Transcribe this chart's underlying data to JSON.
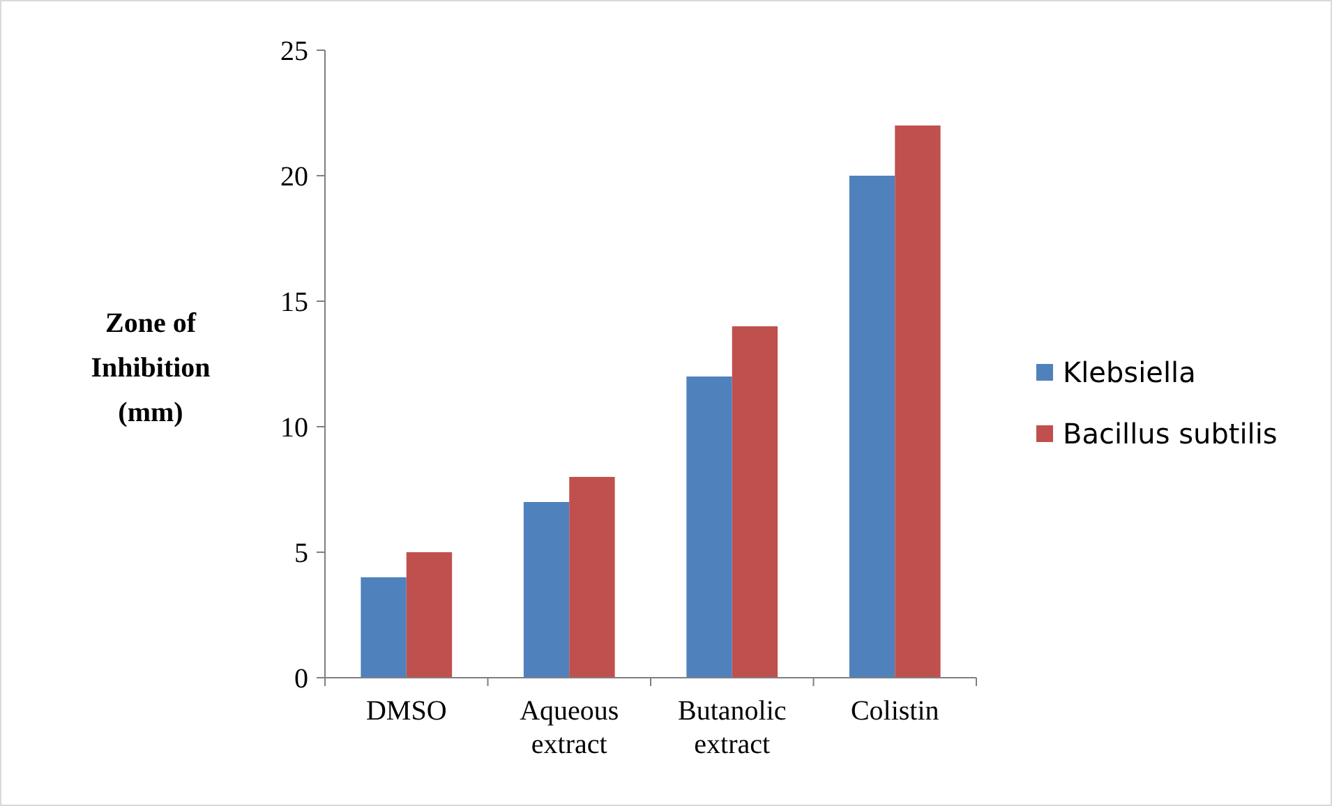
{
  "chart_data": {
    "type": "bar",
    "ylabel": "Zone of Inhibition (mm)",
    "categories": [
      "DMSO",
      "Aqueous extract",
      "Butanolic extract",
      "Colistin"
    ],
    "series": [
      {
        "name": "Klebsiella",
        "color": "#4f81bd",
        "values": [
          4,
          7,
          12,
          20
        ]
      },
      {
        "name": "Bacillus subtilis",
        "color": "#c0504d",
        "values": [
          5,
          8,
          14,
          22
        ]
      }
    ],
    "ylim": [
      0,
      25
    ],
    "yticks": [
      0,
      5,
      10,
      15,
      20,
      25
    ],
    "grid": false,
    "legend": "right"
  }
}
